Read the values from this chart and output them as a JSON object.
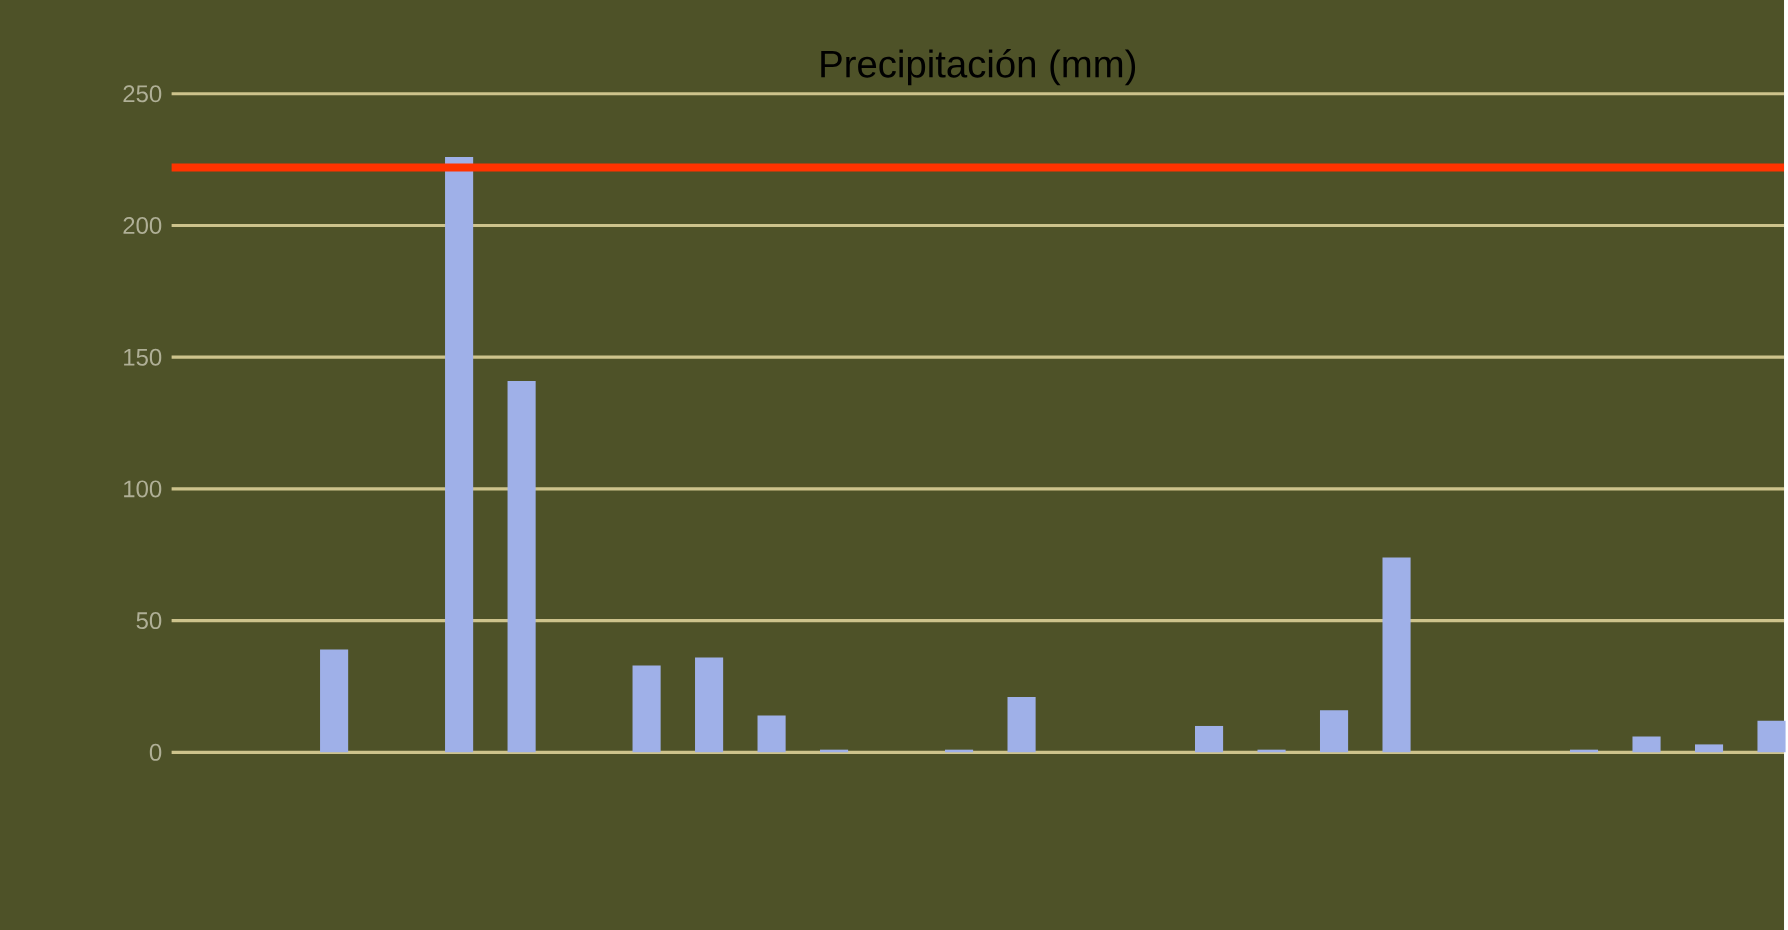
{
  "chart_data": {
    "type": "bar",
    "title": "Precipitación (mm)",
    "categories": [
      null,
      null,
      null,
      null,
      null,
      null,
      null,
      null,
      null,
      null,
      null,
      null,
      null,
      null,
      null,
      null,
      null,
      null,
      null,
      null,
      null,
      null,
      null,
      null,
      null,
      null
    ],
    "values": [
      0,
      0,
      39,
      0,
      226,
      141,
      0,
      33,
      36,
      14,
      1,
      0,
      1,
      21,
      0,
      0,
      10,
      1,
      16,
      74,
      0,
      0,
      1,
      6,
      3,
      12
    ],
    "color": "#9fb0e8",
    "ylim": [
      0,
      250
    ],
    "yticks": [
      0,
      50,
      100,
      150,
      200,
      250
    ],
    "grid": "y",
    "tick_labels": "y",
    "ref_lines": [
      {
        "axis": "y",
        "value": 222,
        "color": "#ff3300"
      }
    ]
  }
}
